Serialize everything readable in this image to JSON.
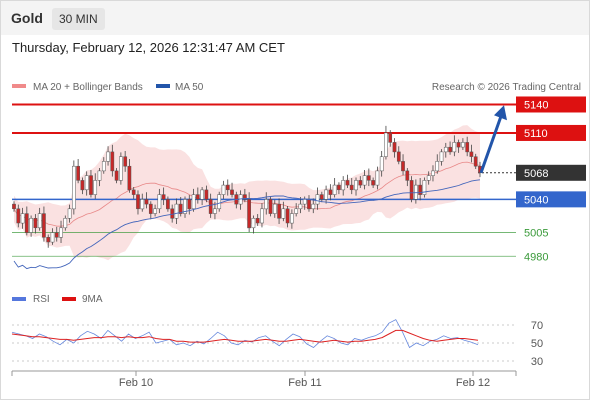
{
  "header": {
    "symbol": "Gold",
    "timeframe": "30 MIN"
  },
  "datetime": "Thursday, February 12, 2026 12:31:47 AM CET",
  "legend": {
    "bollinger": "MA 20 + Bollinger Bands",
    "ma50": "MA 50",
    "copyright": "Research © 2026 Trading Central",
    "rsi": "RSI",
    "rsi_ma": "9MA"
  },
  "colors": {
    "resistance": "#dd1111",
    "support": "#3366cc",
    "minor_support": "#3a9a3a",
    "current": "#333333",
    "candle_up": "#ffffff",
    "candle_down": "#c62828",
    "band_fill": "#f8d7d7",
    "ma20": "#e88888",
    "ma50": "#4466bb",
    "rsi": "#6688dd",
    "rsi_ma": "#dd2222",
    "arrow": "#2255aa"
  },
  "chart_data": [
    {
      "type": "candlestick",
      "y_range": [
        4955,
        5150
      ],
      "x_labels": [
        "Feb 10",
        "Feb 11",
        "Feb 12"
      ],
      "levels": [
        {
          "value": 5140,
          "label": "5140",
          "kind": "resistance"
        },
        {
          "value": 5110,
          "label": "5110",
          "kind": "resistance"
        },
        {
          "value": 5068,
          "label": "5068",
          "kind": "current"
        },
        {
          "value": 5040,
          "label": "5040",
          "kind": "support"
        },
        {
          "value": 5005,
          "label": "5005",
          "kind": "minor_support"
        },
        {
          "value": 4980,
          "label": "4980",
          "kind": "minor_support"
        }
      ],
      "closes": [
        5030,
        5015,
        5025,
        5005,
        5020,
        5010,
        5025,
        5000,
        4995,
        5005,
        5000,
        5010,
        5020,
        5030,
        5075,
        5060,
        5050,
        5065,
        5045,
        5060,
        5070,
        5080,
        5090,
        5070,
        5060,
        5085,
        5075,
        5050,
        5045,
        5030,
        5040,
        5035,
        5025,
        5030,
        5045,
        5040,
        5030,
        5020,
        5035,
        5025,
        5040,
        5030,
        5045,
        5040,
        5050,
        5040,
        5025,
        5030,
        5045,
        5055,
        5050,
        5045,
        5035,
        5045,
        5040,
        5010,
        5020,
        5015,
        5030,
        5040,
        5025,
        5035,
        5020,
        5030,
        5015,
        5025,
        5030,
        5035,
        5040,
        5030,
        5035,
        5045,
        5040,
        5050,
        5045,
        5055,
        5050,
        5060,
        5055,
        5050,
        5060,
        5055,
        5065,
        5060,
        5055,
        5070,
        5085,
        5110,
        5100,
        5090,
        5080,
        5070,
        5060,
        5040,
        5055,
        5045,
        5060,
        5065,
        5070,
        5080,
        5090,
        5095,
        5090,
        5100,
        5095,
        5100,
        5090,
        5085,
        5075,
        5068
      ],
      "trend_arrow": {
        "from_value": 5068,
        "to_value": 5135
      }
    },
    {
      "type": "line",
      "title": "RSI",
      "y_range": [
        20,
        80
      ],
      "y_ticks": [
        70,
        50,
        30
      ],
      "series": [
        {
          "name": "RSI",
          "values": [
            62,
            60,
            58,
            55,
            60,
            57,
            52,
            48,
            54,
            50,
            58,
            63,
            60,
            55,
            64,
            58,
            52,
            60,
            55,
            58,
            62,
            50,
            52,
            54,
            48,
            50,
            47,
            52,
            49,
            55,
            62,
            58,
            50,
            48,
            53,
            51,
            56,
            58,
            52,
            47,
            54,
            60,
            57,
            49,
            45,
            52,
            58,
            55,
            50,
            48,
            55,
            53,
            56,
            58,
            62,
            72,
            76,
            62,
            45,
            50,
            47,
            52,
            54,
            58,
            55,
            56,
            53,
            51,
            48
          ]
        },
        {
          "name": "9MA",
          "values": [
            60,
            59,
            58,
            57,
            57,
            56,
            55,
            54,
            54,
            53,
            54,
            55,
            56,
            56,
            57,
            57,
            56,
            57,
            56,
            56,
            57,
            55,
            54,
            54,
            52,
            52,
            51,
            51,
            51,
            52,
            53,
            54,
            53,
            52,
            52,
            52,
            53,
            54,
            53,
            52,
            52,
            53,
            54,
            53,
            52,
            51,
            52,
            53,
            52,
            51,
            52,
            52,
            53,
            54,
            56,
            60,
            64,
            64,
            61,
            58,
            55,
            53,
            52,
            53,
            54,
            55,
            55,
            54,
            53
          ]
        }
      ]
    }
  ]
}
